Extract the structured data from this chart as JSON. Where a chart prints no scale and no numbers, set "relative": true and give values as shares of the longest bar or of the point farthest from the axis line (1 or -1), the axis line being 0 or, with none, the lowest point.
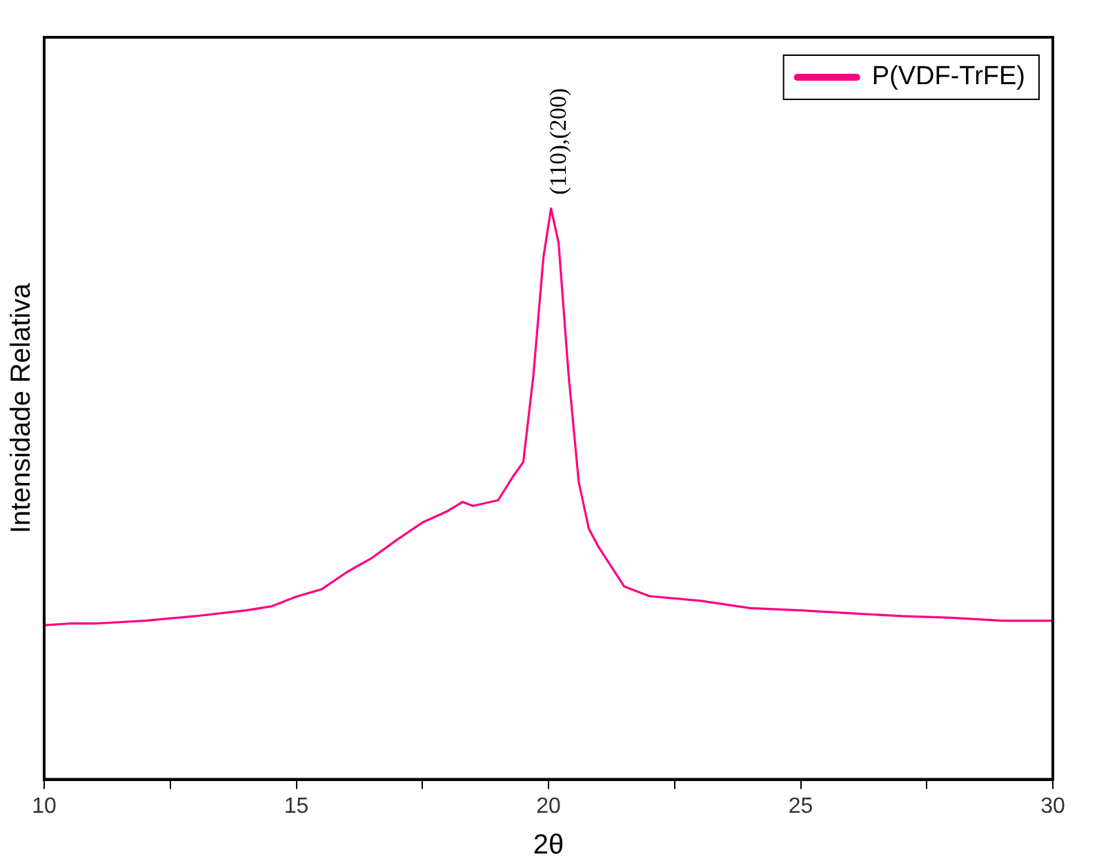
{
  "chart_data": {
    "type": "line",
    "xlabel": "2θ",
    "ylabel": "Intensidade Relativa",
    "relative": true,
    "legend": "top right",
    "grid": false,
    "marker": "none",
    "line_style": "solid",
    "xlim": [
      10,
      30
    ],
    "xticks": [
      10,
      {
        "value": 12.5,
        "label": null
      },
      15,
      {
        "value": 17.5,
        "label": null
      },
      20,
      {
        "value": 22.5,
        "label": null
      },
      25,
      {
        "value": 27.5,
        "label": null
      },
      30
    ],
    "annotations": [
      {
        "text": "(110),(200)",
        "x": 20.05,
        "y": 1.0
      }
    ],
    "x": [
      10,
      10.5,
      11,
      12,
      13,
      14,
      14.5,
      15,
      15.5,
      16,
      16.5,
      17,
      17.5,
      18,
      18.3,
      18.5,
      19,
      19.3,
      19.5,
      19.7,
      19.9,
      20.05,
      20.2,
      20.4,
      20.6,
      20.8,
      21,
      21.5,
      22,
      23,
      24,
      25,
      26,
      27,
      28,
      29,
      30
    ],
    "series": [
      {
        "name": "P(VDF-TrFE)",
        "color": "#ff0080",
        "values": [
          0.27,
          0.273,
          0.273,
          0.278,
          0.286,
          0.296,
          0.303,
          0.32,
          0.333,
          0.363,
          0.388,
          0.42,
          0.45,
          0.47,
          0.486,
          0.479,
          0.489,
          0.531,
          0.556,
          0.707,
          0.915,
          1.0,
          0.94,
          0.707,
          0.521,
          0.439,
          0.406,
          0.338,
          0.321,
          0.313,
          0.3,
          0.296,
          0.291,
          0.286,
          0.283,
          0.278,
          0.278
        ]
      }
    ]
  }
}
